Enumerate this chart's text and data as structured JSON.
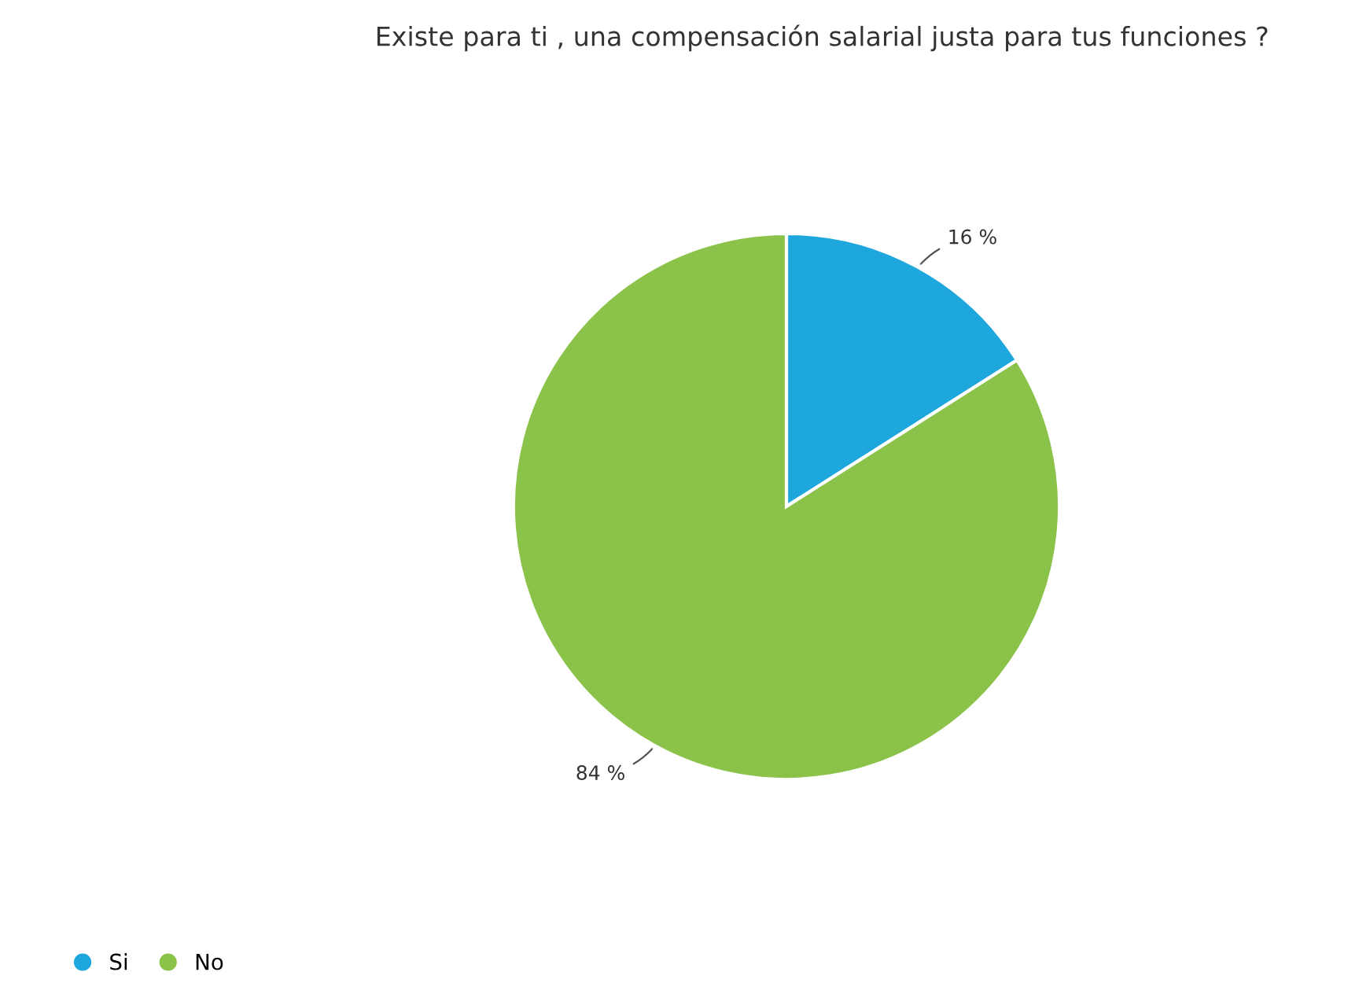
{
  "chart_data": {
    "type": "pie",
    "title": "Existe para ti , una compensación salarial justa para tus funciones ?",
    "categories": [
      "Si",
      "No"
    ],
    "values": [
      16,
      84
    ],
    "colors": [
      "#1ea7dc",
      "#8bc34a"
    ],
    "value_labels": [
      "16 %",
      "84 %"
    ],
    "legend": "bottom left"
  }
}
